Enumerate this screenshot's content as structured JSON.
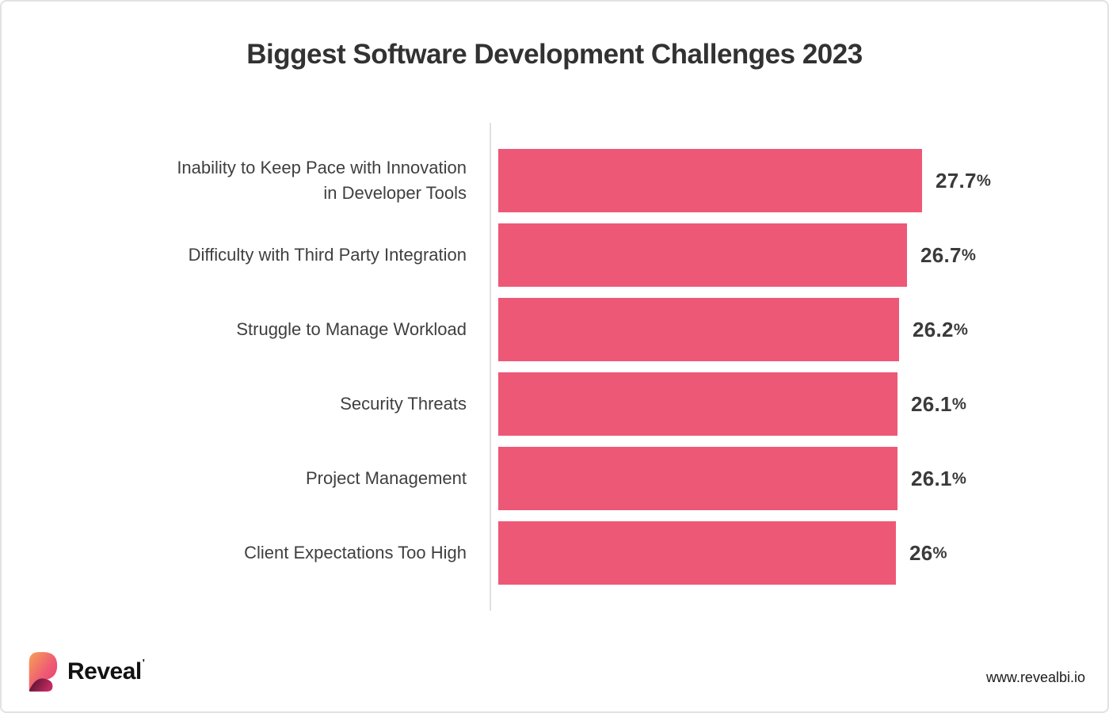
{
  "colors": {
    "bar": "#EE5877",
    "title_text": "#323232",
    "label_text": "#3F3F3F",
    "value_text": "#3A3A3A",
    "axis_line": "#E0E0E0",
    "canvas_border": "#E2E2E2",
    "logo_gradient_start": "#F7A254",
    "logo_gradient_mid": "#EE5B74",
    "logo_gradient_end": "#E63A6F",
    "logo_leg_dark": "#45122B",
    "logo_leg_light": "#C22960"
  },
  "chart_data": {
    "type": "bar",
    "orientation": "horizontal",
    "title": "Biggest Software Development Challenges 2023",
    "categories": [
      "Inability to Keep Pace with Innovation in Developer Tools",
      "Difficulty with Third Party Integration",
      "Struggle to Manage Workload",
      "Security Threats",
      "Project Management",
      "Client Expectations Too High"
    ],
    "label_lines": [
      [
        "Inability to Keep Pace with Innovation",
        "in Developer Tools"
      ],
      [
        "Difficulty with Third Party Integration"
      ],
      [
        "Struggle to Manage Workload"
      ],
      [
        "Security Threats"
      ],
      [
        "Project Management"
      ],
      [
        "Client Expectations Too High"
      ]
    ],
    "values": [
      27.7,
      26.7,
      26.2,
      26.1,
      26.1,
      26
    ],
    "value_labels": [
      "27.7%",
      "26.7%",
      "26.2%",
      "26.1%",
      "26.1%",
      "26%"
    ],
    "unit": "%",
    "xlim": [
      0,
      27.7
    ],
    "grid": false,
    "legend": false,
    "bar_color": "#EE5877"
  },
  "footer": {
    "brand": "Reveal",
    "trademark_mark": "'",
    "website": "www.revealbi.io"
  }
}
